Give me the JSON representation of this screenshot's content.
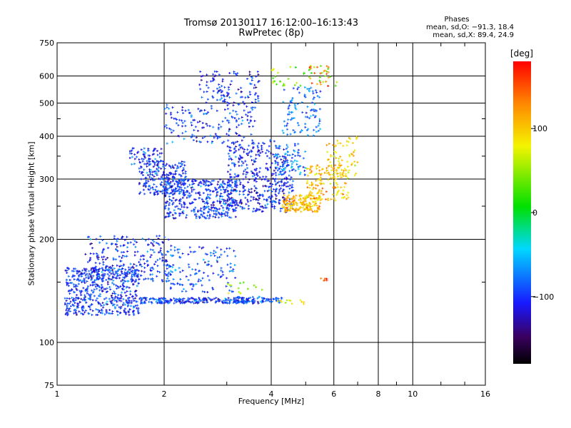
{
  "chart_data": {
    "type": "scatter",
    "title": "Tromsø 20130117 16:12:00–16:13:43",
    "subtitle": "RwPretec (8p)",
    "xlabel": "Frequency [MHz]",
    "ylabel": "Stationary phase Virtual Height [km]",
    "x_scale": "log",
    "y_scale": "log",
    "xlim": [
      1,
      16
    ],
    "ylim": [
      75,
      750
    ],
    "x_ticks": [
      "1",
      "2",
      "4",
      "6",
      "8",
      "10",
      "16"
    ],
    "x_tick_values": [
      1,
      2,
      4,
      6,
      8,
      10,
      16
    ],
    "y_ticks": [
      "75",
      "100",
      "200",
      "300",
      "400",
      "500",
      "600",
      "750"
    ],
    "y_tick_values": [
      75,
      100,
      200,
      300,
      400,
      500,
      600,
      750
    ],
    "grid": true,
    "color_scale": {
      "label": "[deg]",
      "ticks": [
        "100",
        "0",
        "−100"
      ],
      "tick_values": [
        100,
        0,
        -100
      ],
      "range": [
        -180,
        180
      ],
      "colormap": "rainbow (black–purple–blue–cyan–green–yellow–orange–red)"
    },
    "annotation": {
      "title": "Phases",
      "lines": [
        "mean, sd,O: −91.3, 18.4",
        "mean, sd,X: 89.4, 24.9"
      ]
    },
    "clusters": [
      {
        "freq": [
          1.05,
          1.7
        ],
        "height": [
          120,
          165
        ],
        "phase": -100,
        "count": 520
      },
      {
        "freq": [
          1.2,
          2.1
        ],
        "height": [
          150,
          205
        ],
        "phase": -100,
        "count": 260
      },
      {
        "freq": [
          1.7,
          3.6
        ],
        "height": [
          130,
          135
        ],
        "phase": -100,
        "count": 220
      },
      {
        "freq": [
          2.0,
          3.2
        ],
        "height": [
          140,
          190
        ],
        "phase": -90,
        "count": 140
      },
      {
        "freq": [
          3.2,
          4.3
        ],
        "height": [
          130,
          136
        ],
        "phase": -95,
        "count": 70
      },
      {
        "freq": [
          3.0,
          3.8
        ],
        "height": [
          138,
          150
        ],
        "phase": 60,
        "count": 14
      },
      {
        "freq": [
          4.1,
          5.0
        ],
        "height": [
          129,
          134
        ],
        "phase": 80,
        "count": 12
      },
      {
        "freq": [
          5.5,
          5.8
        ],
        "height": [
          150,
          154
        ],
        "phase": 150,
        "count": 6
      },
      {
        "freq": [
          1.7,
          2.3
        ],
        "height": [
          270,
          340
        ],
        "phase": -100,
        "count": 240
      },
      {
        "freq": [
          1.6,
          2.0
        ],
        "height": [
          330,
          370
        ],
        "phase": -100,
        "count": 60
      },
      {
        "freq": [
          2.0,
          3.2
        ],
        "height": [
          230,
          300
        ],
        "phase": -100,
        "count": 380
      },
      {
        "freq": [
          3.0,
          4.6
        ],
        "height": [
          240,
          300
        ],
        "phase": -105,
        "count": 240
      },
      {
        "freq": [
          3.0,
          4.4
        ],
        "height": [
          300,
          390
        ],
        "phase": -110,
        "count": 180
      },
      {
        "freq": [
          4.1,
          5.0
        ],
        "height": [
          300,
          380
        ],
        "phase": -80,
        "count": 90
      },
      {
        "freq": [
          4.3,
          5.5
        ],
        "height": [
          240,
          270
        ],
        "phase": 110,
        "count": 180
      },
      {
        "freq": [
          5.0,
          6.6
        ],
        "height": [
          260,
          330
        ],
        "phase": 105,
        "count": 140
      },
      {
        "freq": [
          5.7,
          7.0
        ],
        "height": [
          300,
          400
        ],
        "phase": 95,
        "count": 70
      },
      {
        "freq": [
          2.0,
          3.6
        ],
        "height": [
          380,
          500
        ],
        "phase": -100,
        "count": 160
      },
      {
        "freq": [
          2.5,
          3.7
        ],
        "height": [
          500,
          620
        ],
        "phase": -105,
        "count": 110
      },
      {
        "freq": [
          4.3,
          5.5
        ],
        "height": [
          400,
          560
        ],
        "phase": -80,
        "count": 100
      },
      {
        "freq": [
          4.0,
          6.2
        ],
        "height": [
          560,
          650
        ],
        "phase": 40,
        "count": 40
      },
      {
        "freq": [
          5.0,
          5.8
        ],
        "height": [
          560,
          650
        ],
        "phase": 140,
        "count": 20
      }
    ]
  }
}
